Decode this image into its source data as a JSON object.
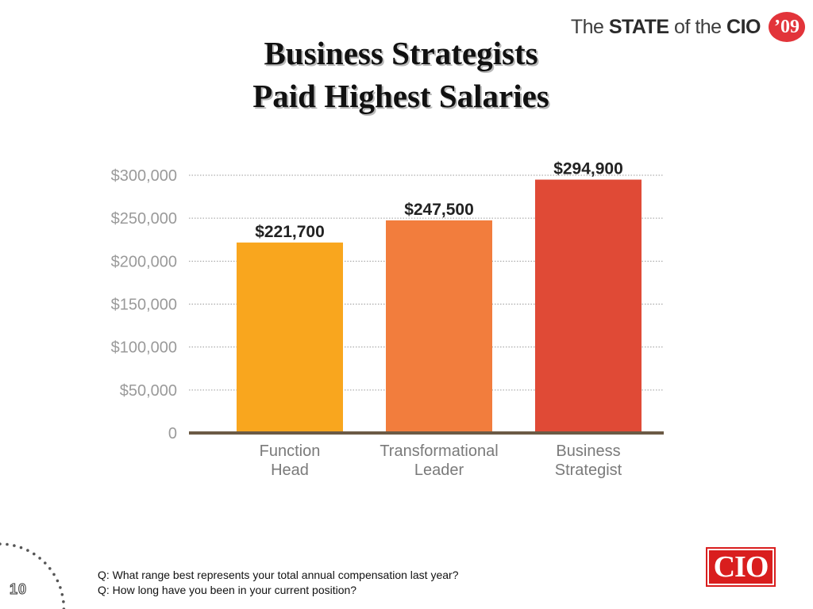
{
  "brand": {
    "prefix": "The ",
    "bold": "STATE",
    "middle": " of the ",
    "bold2": "CIO",
    "year": "’09"
  },
  "title": {
    "line1": "Business Strategists",
    "line2": "Paid Highest Salaries"
  },
  "chart_data": {
    "type": "bar",
    "categories": [
      [
        "Function",
        "Head"
      ],
      [
        "Transformational",
        "Leader"
      ],
      [
        "Business",
        "Strategist"
      ]
    ],
    "values": [
      221700,
      247500,
      294900
    ],
    "data_labels": [
      "$221,700",
      "$247,500",
      "$294,900"
    ],
    "colors": [
      "#f9a61e",
      "#f27d3d",
      "#e04a36"
    ],
    "ylim": [
      0,
      300000
    ],
    "yticks": [
      0,
      50000,
      100000,
      150000,
      200000,
      250000,
      300000
    ],
    "ytick_labels": [
      "0",
      "$50,000",
      "$100,000",
      "$150,000",
      "$200,000",
      "$250,000",
      "$300,000"
    ],
    "grid": true,
    "title": "",
    "xlabel": "",
    "ylabel": ""
  },
  "questions": [
    "Q: What range best represents your total annual compensation last year?",
    "Q: How long have you been in your current position?"
  ],
  "page_number": "10",
  "logo": {
    "text": "CIO",
    "color": "#d91e1e"
  }
}
